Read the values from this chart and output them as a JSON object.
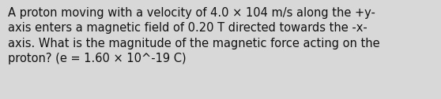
{
  "text_lines": [
    "A proton moving with a velocity of 4.0 × 104 m/s along the +y-",
    "axis enters a magnetic field of 0.20 T directed towards the -x-",
    "axis. What is the magnitude of the magnetic force acting on the",
    "proton? (e = 1.60 × 10^-19 C)"
  ],
  "background_color": "#d8d8d8",
  "text_color": "#111111",
  "font_size": 10.5,
  "fig_width": 5.58,
  "fig_height": 1.26,
  "dpi": 100
}
